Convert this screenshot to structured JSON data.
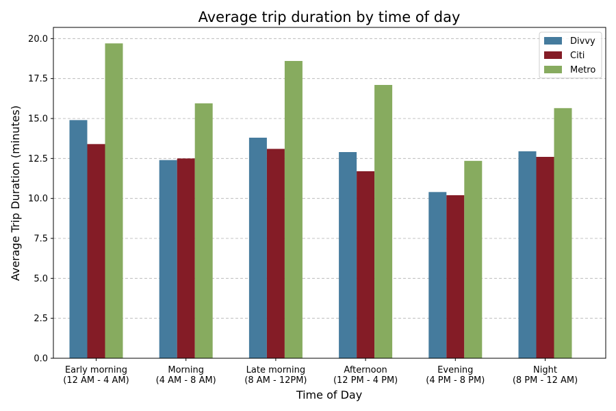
{
  "chart_data": {
    "type": "bar",
    "title": "Average trip duration by time of day",
    "xlabel": "Time of Day",
    "ylabel": "Average Trip Duration (minutes)",
    "categories": [
      [
        "Early morning",
        "(12 AM - 4 AM)"
      ],
      [
        "Morning",
        "(4 AM - 8 AM)"
      ],
      [
        "Late morning",
        "(8 AM - 12PM)"
      ],
      [
        "Afternoon",
        "(12 PM - 4 PM)"
      ],
      [
        "Evening",
        "(4 PM - 8 PM)"
      ],
      [
        "Night",
        "(8 PM - 12 AM)"
      ]
    ],
    "series": [
      {
        "name": "Divvy",
        "color": "#457b9d",
        "values": [
          14.9,
          12.4,
          13.8,
          12.9,
          10.4,
          12.95
        ]
      },
      {
        "name": "Citi",
        "color": "#841c26",
        "values": [
          13.4,
          12.5,
          13.1,
          11.7,
          10.2,
          12.6
        ]
      },
      {
        "name": "Metro",
        "color": "#87ab5f",
        "values": [
          19.7,
          15.95,
          18.6,
          17.1,
          12.35,
          15.65
        ]
      }
    ],
    "ylim": [
      0,
      20.7
    ],
    "yticks": [
      "0.0",
      "2.5",
      "5.0",
      "7.5",
      "10.0",
      "12.5",
      "15.0",
      "17.5",
      "20.0"
    ],
    "grid": "y-dashed",
    "legend_position": "top-right"
  }
}
